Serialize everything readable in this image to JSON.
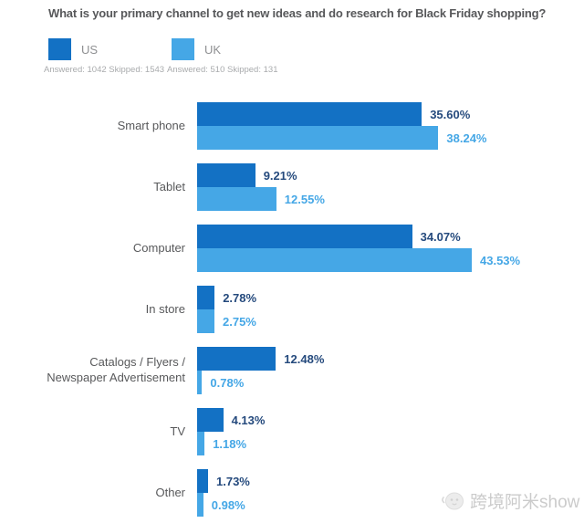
{
  "title": "What is your primary channel to get new ideas and do research for Black Friday shopping?",
  "legend": {
    "entries": [
      {
        "label": "US",
        "meta": "Answered: 1042 Skipped: 1543"
      },
      {
        "label": "UK",
        "meta": "Answered: 510 Skipped: 131"
      }
    ]
  },
  "chart_data": {
    "type": "bar",
    "orientation": "horizontal",
    "title": "What is your primary channel to get new ideas and do research for Black Friday shopping?",
    "categories": [
      "Smart phone",
      "Tablet",
      "Computer",
      "In store",
      "Catalogs / Flyers / Newspaper Advertisement",
      "TV",
      "Other"
    ],
    "series": [
      {
        "name": "US",
        "color": "#1371c4",
        "value_label_color": "#254a7d",
        "values": [
          35.6,
          9.21,
          34.07,
          2.78,
          12.48,
          4.13,
          1.73
        ]
      },
      {
        "name": "UK",
        "color": "#45a7e6",
        "value_label_color": "#45a7e6",
        "values": [
          38.24,
          12.55,
          43.53,
          2.75,
          0.78,
          1.18,
          0.98
        ]
      }
    ],
    "value_suffix": "%",
    "value_decimals": 2,
    "xlim": [
      0,
      43.53
    ],
    "grid": false,
    "legend_position": "top-left",
    "data_labels": "outside-end"
  },
  "watermark": {
    "text": "跨境阿米show"
  }
}
